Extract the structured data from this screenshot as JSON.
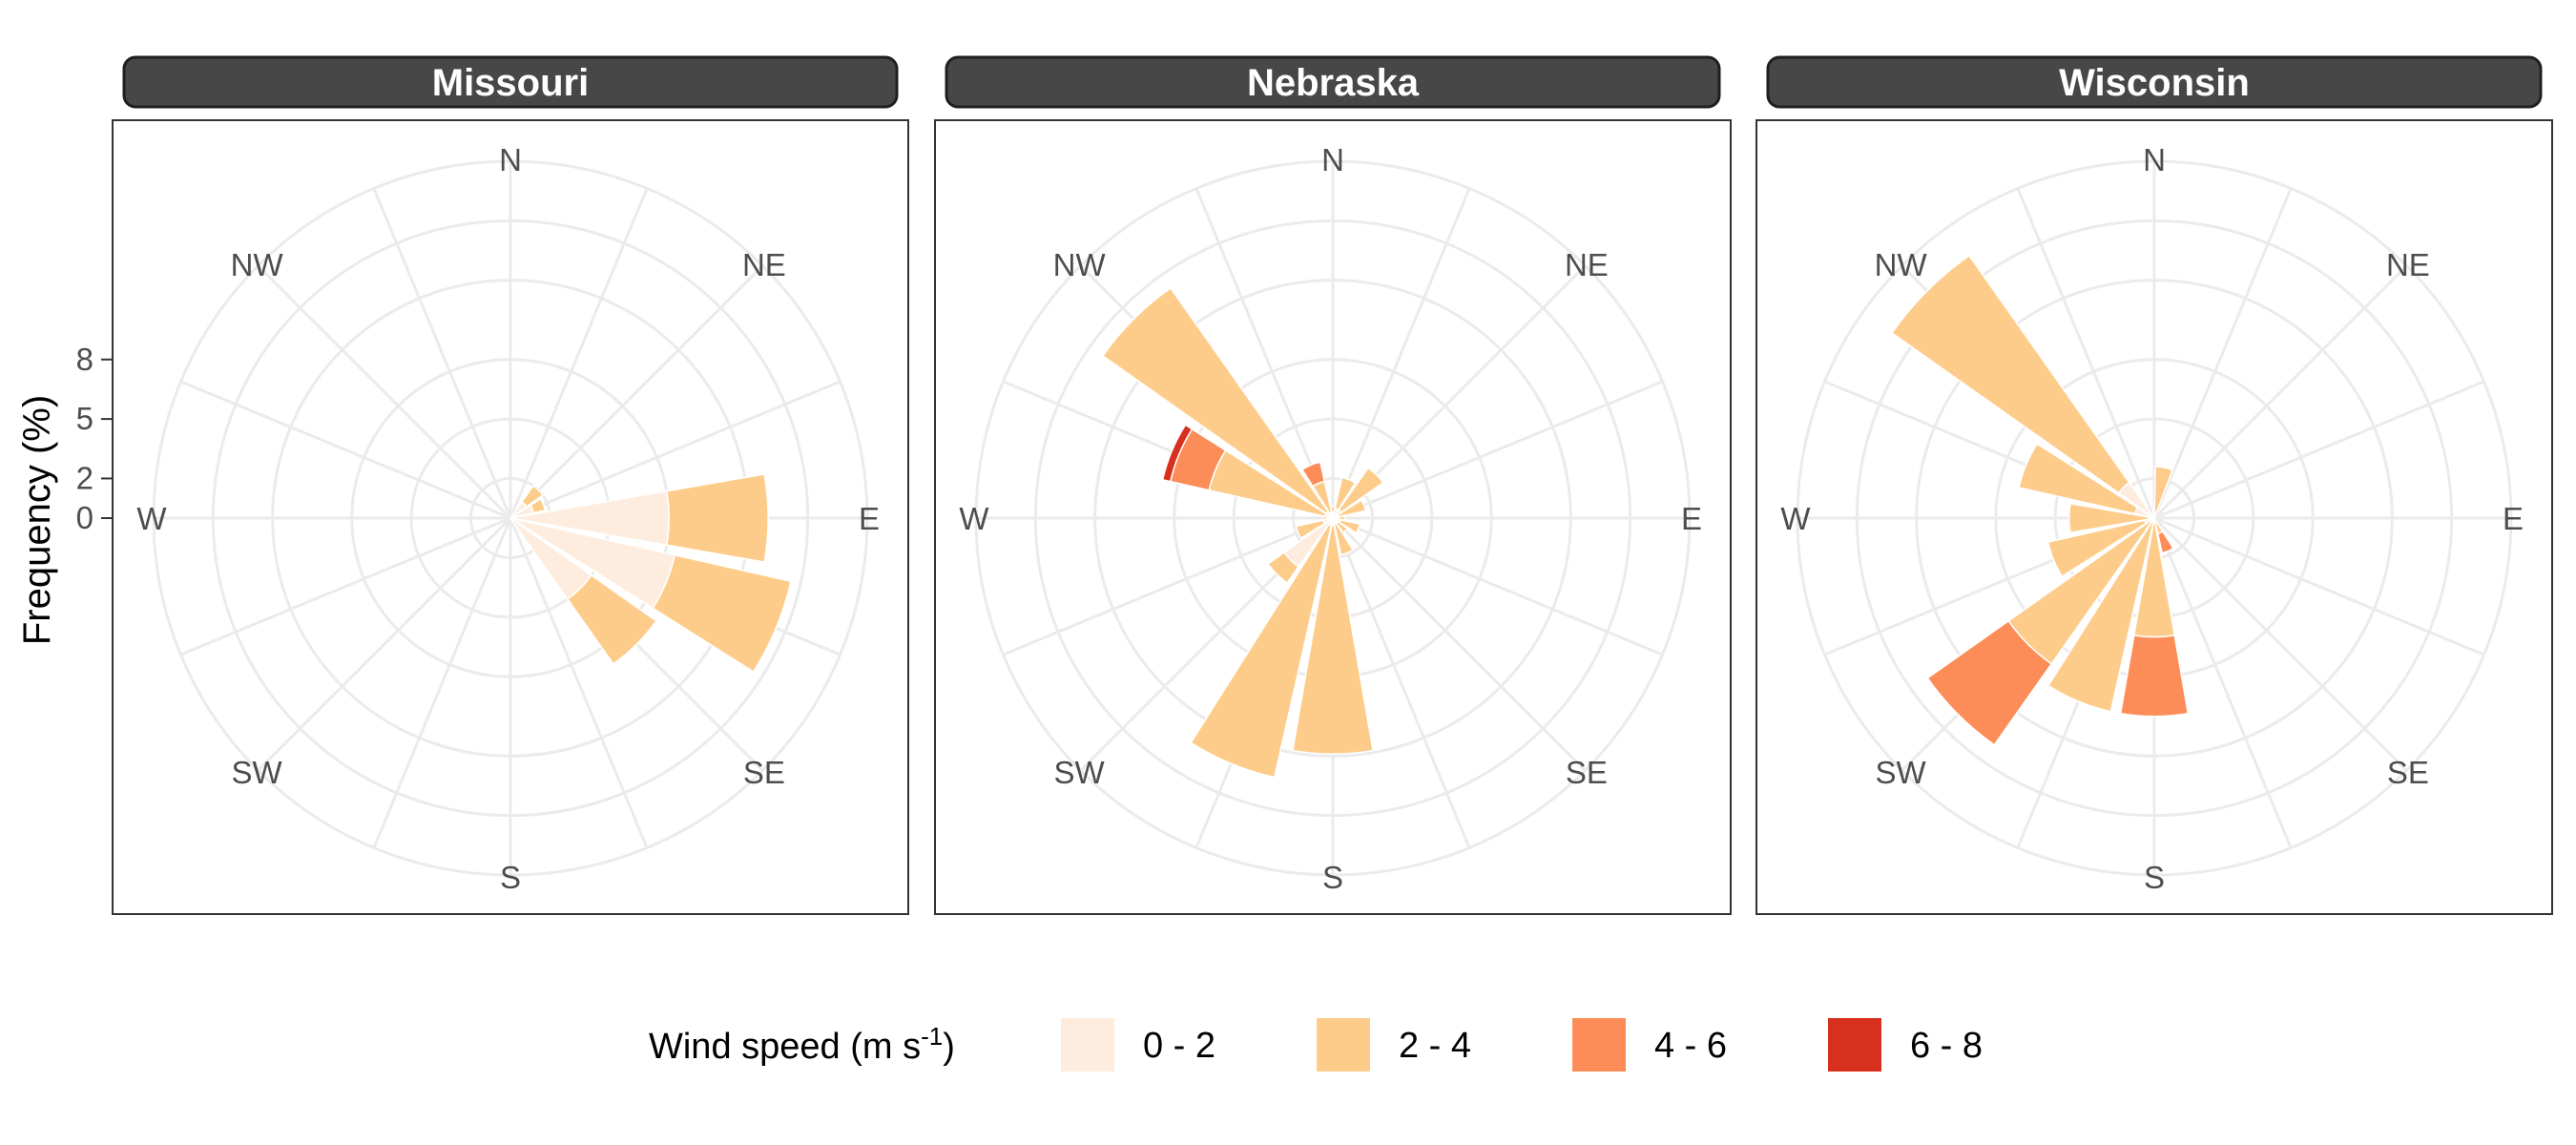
{
  "chart_data": {
    "type": "polar-stacked-bar",
    "ylabel": "Frequency (%)",
    "directions": [
      "N",
      "NE",
      "E",
      "SE",
      "S",
      "SW",
      "W",
      "NW"
    ],
    "sector_angles_deg": [
      0,
      22.5,
      45,
      67.5,
      90,
      112.5,
      135,
      157.5,
      180,
      202.5,
      225,
      247.5,
      270,
      292.5,
      315,
      337.5
    ],
    "r_axis": {
      "ticks": [
        "0",
        "2",
        "5",
        "8"
      ],
      "tick_values": [
        0,
        2,
        5,
        8
      ],
      "grid_values": [
        0,
        2,
        5,
        8,
        12,
        15,
        18
      ]
    },
    "speed_bins": [
      "0 - 2",
      "2 - 4",
      "4 - 6",
      "6 - 8"
    ],
    "colors": [
      "#feedde",
      "#fdcc8a",
      "#fc8d59",
      "#d7301f"
    ],
    "legend": {
      "title": "Wind speed (m s",
      "title_sup": "-1",
      "title_close": ")",
      "position": "bottom"
    },
    "panels": [
      {
        "name": "Missouri",
        "wedges": [
          {
            "angle": 45,
            "values": [
              1.0,
              1.0,
              0,
              0
            ]
          },
          {
            "angle": 67.5,
            "values": [
              1.2,
              0.6,
              0,
              0
            ]
          },
          {
            "angle": 90,
            "values": [
              8.0,
              5.0,
              0,
              0
            ]
          },
          {
            "angle": 112.5,
            "values": [
              8.5,
              6.0,
              0,
              0
            ]
          },
          {
            "angle": 135,
            "values": [
              5.0,
              4.0,
              0,
              0
            ]
          }
        ]
      },
      {
        "name": "Nebraska",
        "wedges": [
          {
            "angle": 0,
            "values": [
              0.3,
              0.3,
              0,
              0
            ]
          },
          {
            "angle": 22.5,
            "values": [
              0.5,
              1.6,
              0,
              0
            ]
          },
          {
            "angle": 45,
            "values": [
              0.5,
              2.6,
              0,
              0
            ]
          },
          {
            "angle": 67.5,
            "values": [
              0.3,
              1.4,
              0,
              0
            ]
          },
          {
            "angle": 90,
            "values": [
              0.3,
              0.3,
              0,
              0
            ]
          },
          {
            "angle": 112.5,
            "values": [
              0.4,
              1.0,
              0,
              0
            ]
          },
          {
            "angle": 135,
            "values": [
              0.3,
              0.6,
              0,
              0
            ]
          },
          {
            "angle": 157.5,
            "values": [
              0.3,
              1.6,
              0,
              0
            ]
          },
          {
            "angle": 180,
            "values": [
              0.4,
              11.5,
              0,
              0
            ]
          },
          {
            "angle": 202.5,
            "values": [
              0.4,
              13.0,
              0,
              0
            ]
          },
          {
            "angle": 225,
            "values": [
              3.0,
              1.0,
              0,
              0
            ]
          },
          {
            "angle": 247.5,
            "values": [
              0.5,
              1.4,
              0,
              0
            ]
          },
          {
            "angle": 270,
            "values": [
              0.3,
              0.2,
              0,
              0
            ]
          },
          {
            "angle": 292.5,
            "values": [
              0.4,
              6.0,
              2.0,
              0.4
            ]
          },
          {
            "angle": 315,
            "values": [
              0.4,
              13.8,
              0,
              0
            ]
          },
          {
            "angle": 337.5,
            "values": [
              0.3,
              1.6,
              1.0,
              0
            ]
          }
        ]
      },
      {
        "name": "Wisconsin",
        "wedges": [
          {
            "angle": 0,
            "values": [
              0,
              0.5,
              0,
              0
            ]
          },
          {
            "angle": 11.0,
            "values": [
              0,
              2.6,
              0,
              0
            ]
          },
          {
            "angle": 157.5,
            "values": [
              0,
              0.8,
              1.0,
              0
            ]
          },
          {
            "angle": 180,
            "values": [
              0,
              6.0,
              4.0,
              0
            ]
          },
          {
            "angle": 202.5,
            "values": [
              0,
              10.0,
              0,
              0
            ]
          },
          {
            "angle": 225,
            "values": [
              0,
              9.0,
              5.0,
              0
            ]
          },
          {
            "angle": 247.5,
            "values": [
              0.5,
              5.0,
              0,
              0
            ]
          },
          {
            "angle": 270,
            "values": [
              0.3,
              4.0,
              0,
              0
            ]
          },
          {
            "angle": 292.5,
            "values": [
              1.0,
              6.0,
              0,
              0
            ]
          },
          {
            "angle": 315,
            "values": [
              2.2,
              14.0,
              0,
              0
            ]
          }
        ]
      }
    ]
  }
}
